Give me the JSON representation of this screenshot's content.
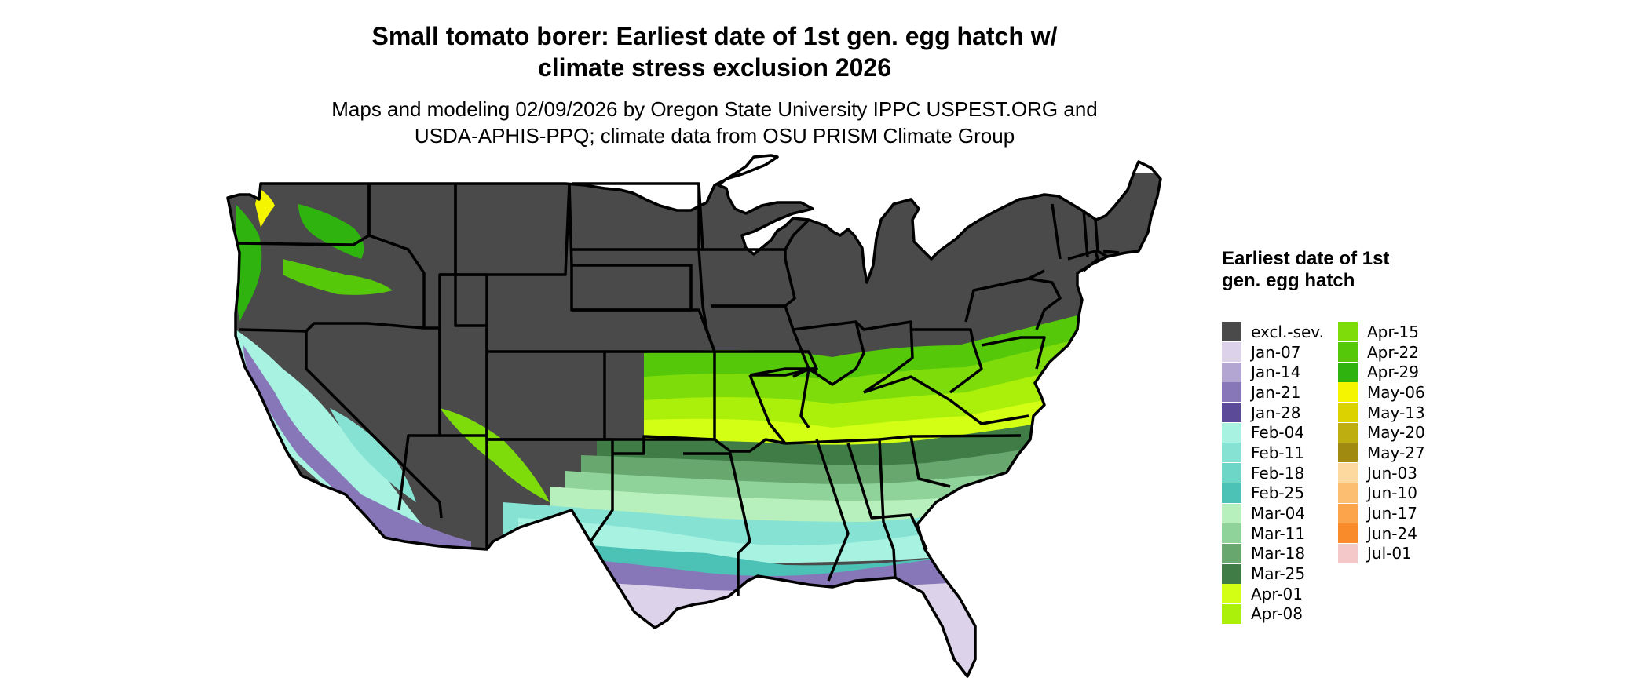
{
  "title_line1": "Small tomato borer: Earliest date of 1st gen. egg hatch w/",
  "title_line2": "climate stress exclusion 2026",
  "subtitle_line1": "Maps and modeling 02/09/2026 by Oregon State University IPPC USPEST.ORG and",
  "subtitle_line2": "USDA-APHIS-PPQ; climate data from OSU PRISM Climate Group",
  "legend": {
    "title": "Earliest date of 1st gen. egg hatch",
    "col1": [
      {
        "label": "excl.-sev.",
        "color": "#4a4a4a"
      },
      {
        "label": "Jan-07",
        "color": "#dcd3ea"
      },
      {
        "label": "Jan-14",
        "color": "#b3a6d3"
      },
      {
        "label": "Jan-21",
        "color": "#8877b8"
      },
      {
        "label": "Jan-28",
        "color": "#5b4a98"
      },
      {
        "label": "Feb-04",
        "color": "#a8f2e2"
      },
      {
        "label": "Feb-11",
        "color": "#86e3d4"
      },
      {
        "label": "Feb-18",
        "color": "#6dd6c6"
      },
      {
        "label": "Feb-25",
        "color": "#4cc2b6"
      },
      {
        "label": "Mar-04",
        "color": "#b7f0bd"
      },
      {
        "label": "Mar-11",
        "color": "#8fd29a"
      },
      {
        "label": "Mar-18",
        "color": "#68a86e"
      },
      {
        "label": "Mar-25",
        "color": "#3f7c46"
      },
      {
        "label": "Apr-01",
        "color": "#d2ff14"
      },
      {
        "label": "Apr-08",
        "color": "#aaf00a"
      }
    ],
    "col2": [
      {
        "label": "Apr-15",
        "color": "#7edc0a"
      },
      {
        "label": "Apr-22",
        "color": "#55c80a"
      },
      {
        "label": "Apr-29",
        "color": "#2fb40f"
      },
      {
        "label": "May-06",
        "color": "#f5f500"
      },
      {
        "label": "May-13",
        "color": "#dcd200"
      },
      {
        "label": "May-20",
        "color": "#bfae10"
      },
      {
        "label": "May-27",
        "color": "#a08a10"
      },
      {
        "label": "Jun-03",
        "color": "#fdd9a0"
      },
      {
        "label": "Jun-10",
        "color": "#fcbf72"
      },
      {
        "label": "Jun-17",
        "color": "#fba44c"
      },
      {
        "label": "Jun-24",
        "color": "#f98b2a"
      },
      {
        "label": "Jul-01",
        "color": "#f4c8c8"
      }
    ]
  }
}
